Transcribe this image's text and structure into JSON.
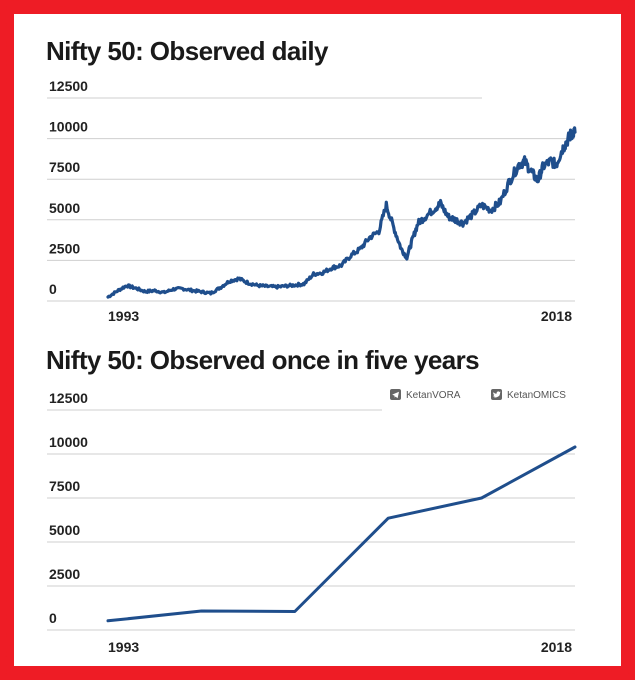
{
  "frame_color": "#ee1c25",
  "line_color": "#1f4e8c",
  "watermarks": [
    {
      "icon": "telegram-icon",
      "label": "KetanVORA"
    },
    {
      "icon": "twitter-icon",
      "label": "KetanOMICS"
    }
  ],
  "chart_data": [
    {
      "type": "line",
      "title": "Nifty 50: Observed daily",
      "xlabel": "",
      "ylabel": "",
      "x_tick_labels": [
        "1993",
        "2018"
      ],
      "xlim": [
        1993,
        2018
      ],
      "ylim": [
        0,
        12500
      ],
      "yticks": [
        0,
        2500,
        5000,
        7500,
        10000,
        12500
      ],
      "grid": true,
      "series": [
        {
          "x": [
            1993.0,
            1993.5,
            1994.0,
            1994.5,
            1995.0,
            1995.5,
            1996.0,
            1996.5,
            1997.0,
            1997.5,
            1998.0,
            1998.5,
            1999.0,
            1999.5,
            2000.0,
            2000.5,
            2001.0,
            2001.5,
            2002.0,
            2002.5,
            2003.0,
            2003.5,
            2004.0,
            2004.5,
            2005.0,
            2005.5,
            2006.0,
            2006.5,
            2007.0,
            2007.5,
            2007.9,
            2008.3,
            2008.7,
            2009.0,
            2009.3,
            2009.6,
            2010.0,
            2010.5,
            2010.8,
            2011.2,
            2011.6,
            2012.0,
            2012.5,
            2013.0,
            2013.5,
            2014.0,
            2014.5,
            2015.0,
            2015.3,
            2015.7,
            2016.0,
            2016.3,
            2016.7,
            2017.0,
            2017.3,
            2017.6,
            2017.8,
            2018.0
          ],
          "y": [
            250,
            620,
            950,
            780,
            580,
            640,
            520,
            730,
            760,
            650,
            570,
            480,
            820,
            1230,
            1380,
            1120,
            960,
            900,
            860,
            920,
            980,
            1050,
            1650,
            1750,
            2050,
            2200,
            2800,
            3200,
            3900,
            4300,
            5900,
            4500,
            3200,
            2700,
            3800,
            4800,
            5200,
            5700,
            6000,
            5200,
            5000,
            4800,
            5300,
            5900,
            5600,
            6100,
            7400,
            8400,
            8600,
            7900,
            7400,
            8300,
            8600,
            8400,
            9300,
            9900,
            10300,
            10400
          ]
        }
      ]
    },
    {
      "type": "line",
      "title": "Nifty 50: Observed once in five years",
      "xlabel": "",
      "ylabel": "",
      "x_tick_labels": [
        "1993",
        "2018"
      ],
      "xlim": [
        1993,
        2018
      ],
      "ylim": [
        0,
        12500
      ],
      "yticks": [
        0,
        2500,
        5000,
        7500,
        10000,
        12500
      ],
      "grid": true,
      "series": [
        {
          "x": [
            1993,
            1998,
            2003,
            2008,
            2013,
            2018
          ],
          "y": [
            520,
            1080,
            1050,
            6350,
            7500,
            10400
          ]
        }
      ]
    }
  ]
}
